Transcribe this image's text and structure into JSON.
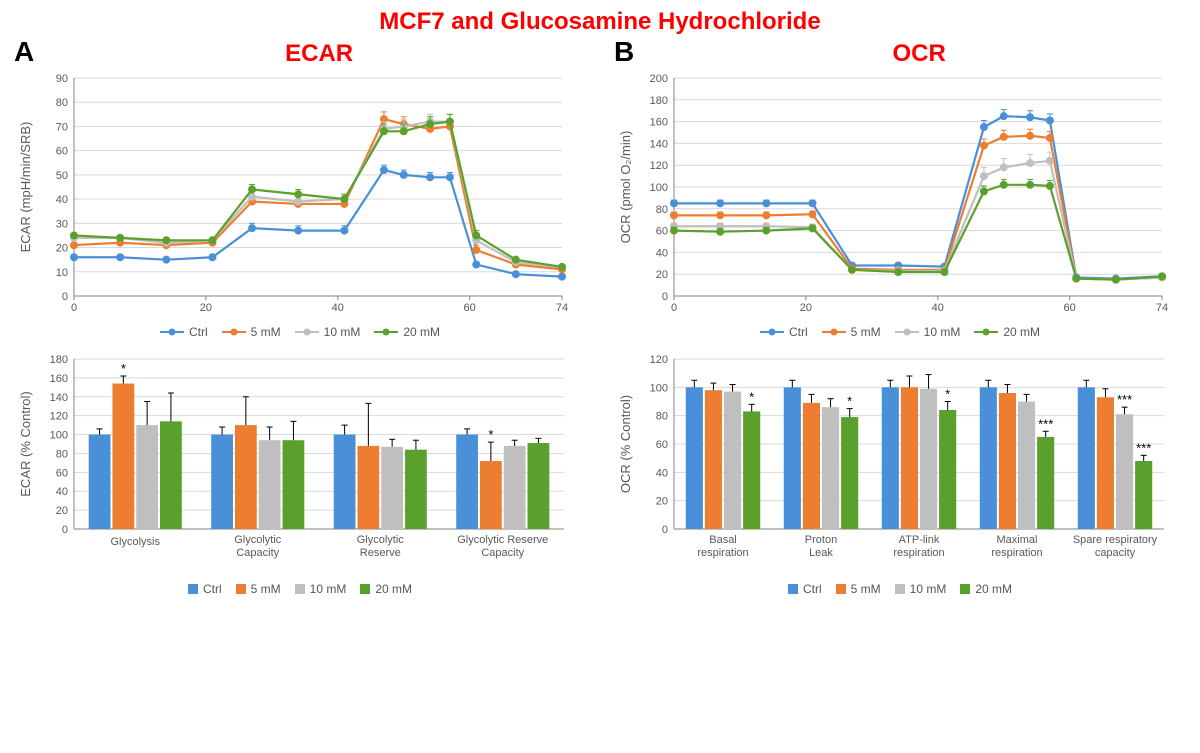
{
  "title": "MCF7 and Glucosamine Hydrochloride",
  "title_color": "#ff0000",
  "colors": {
    "ctrl": "#4a90d9",
    "c5": "#ed7d31",
    "c10": "#bfbfbf",
    "c20": "#5aa02c",
    "grid": "#d9d9d9",
    "axis": "#808080",
    "text": "#595959",
    "red": "#ff0000"
  },
  "legend_labels": {
    "ctrl": "Ctrl",
    "c5": "5 mM",
    "c10": "10 mM",
    "c20": "20 mM"
  },
  "panelA": {
    "letter": "A",
    "subtitle": "ECAR",
    "line": {
      "ylabel": "ECAR (mpH/min/SRB)",
      "x": [
        0,
        7,
        14,
        21,
        27,
        34,
        41,
        47,
        50,
        54,
        57,
        61,
        67,
        74
      ],
      "xticks": [
        0,
        20,
        40,
        60,
        74
      ],
      "ymin": 0,
      "ymax": 90,
      "ystep": 10,
      "series": {
        "ctrl": [
          16,
          16,
          15,
          16,
          28,
          27,
          27,
          52,
          50,
          49,
          49,
          13,
          9,
          8
        ],
        "c5": [
          21,
          22,
          21,
          22,
          39,
          38,
          38,
          73,
          71,
          69,
          70,
          19,
          13,
          11
        ],
        "c10": [
          24,
          24,
          22,
          23,
          41,
          39,
          40,
          69,
          70,
          72,
          72,
          23,
          14,
          12
        ],
        "c20": [
          25,
          24,
          23,
          23,
          44,
          42,
          40,
          68,
          68,
          71,
          72,
          25,
          15,
          12
        ]
      },
      "err": {
        "ctrl": [
          1,
          1,
          1,
          1,
          2,
          2,
          2,
          2,
          2,
          2,
          2,
          1,
          1,
          1
        ],
        "c5": [
          1,
          1,
          1,
          1,
          2,
          2,
          2,
          3,
          3,
          3,
          3,
          2,
          1,
          1
        ],
        "c10": [
          1,
          1,
          1,
          1,
          2,
          2,
          2,
          3,
          3,
          3,
          3,
          2,
          1,
          1
        ],
        "c20": [
          1,
          1,
          1,
          1,
          2,
          2,
          2,
          3,
          3,
          3,
          3,
          2,
          1,
          1
        ]
      }
    },
    "bars": {
      "ylabel": "ECAR (% Control)",
      "ymin": 0,
      "ymax": 180,
      "ystep": 20,
      "categories": [
        "Glycolysis",
        "Glycolytic Capacity",
        "Glycolytic Reserve",
        "Glycolytic Reserve Capacity"
      ],
      "values": {
        "ctrl": [
          100,
          100,
          100,
          100
        ],
        "c5": [
          154,
          110,
          88,
          72
        ],
        "c10": [
          110,
          94,
          87,
          88
        ],
        "c20": [
          114,
          94,
          84,
          91
        ]
      },
      "err": {
        "ctrl": [
          6,
          8,
          10,
          6
        ],
        "c5": [
          8,
          30,
          45,
          20
        ],
        "c10": [
          25,
          14,
          8,
          6
        ],
        "c20": [
          30,
          20,
          10,
          5
        ]
      },
      "sig": [
        {
          "group": 0,
          "series": "c5",
          "label": "*"
        },
        {
          "group": 3,
          "series": "c5",
          "label": "*"
        }
      ]
    }
  },
  "panelB": {
    "letter": "B",
    "subtitle": "OCR",
    "line": {
      "ylabel": "OCR (pmol O₂/min)",
      "x": [
        0,
        7,
        14,
        21,
        27,
        34,
        41,
        47,
        50,
        54,
        57,
        61,
        67,
        74
      ],
      "xticks": [
        0,
        20,
        40,
        60,
        74
      ],
      "ymin": 0,
      "ymax": 200,
      "ystep": 20,
      "series": {
        "ctrl": [
          85,
          85,
          85,
          85,
          28,
          28,
          27,
          155,
          165,
          164,
          161,
          17,
          16,
          18
        ],
        "c5": [
          74,
          74,
          74,
          75,
          25,
          24,
          24,
          138,
          146,
          147,
          145,
          16,
          15,
          17
        ],
        "c10": [
          64,
          64,
          64,
          63,
          24,
          23,
          23,
          110,
          118,
          122,
          124,
          16,
          15,
          17
        ],
        "c20": [
          60,
          59,
          60,
          62,
          24,
          22,
          22,
          96,
          102,
          102,
          101,
          16,
          15,
          18
        ]
      },
      "err": {
        "ctrl": [
          3,
          3,
          3,
          3,
          2,
          2,
          2,
          6,
          6,
          6,
          6,
          1,
          1,
          1
        ],
        "c5": [
          3,
          3,
          3,
          3,
          2,
          2,
          2,
          6,
          6,
          6,
          6,
          1,
          1,
          1
        ],
        "c10": [
          3,
          3,
          3,
          3,
          2,
          2,
          2,
          8,
          8,
          8,
          8,
          1,
          1,
          1
        ],
        "c20": [
          3,
          3,
          3,
          3,
          2,
          2,
          2,
          5,
          5,
          5,
          5,
          1,
          1,
          1
        ]
      }
    },
    "bars": {
      "ylabel": "OCR (% Control)",
      "ymin": 0,
      "ymax": 120,
      "ystep": 20,
      "categories": [
        "Basal respiration",
        "Proton Leak",
        "ATP-link respiration",
        "Maximal respiration",
        "Spare respiratory capacity"
      ],
      "values": {
        "ctrl": [
          100,
          100,
          100,
          100,
          100
        ],
        "c5": [
          98,
          89,
          100,
          96,
          93
        ],
        "c10": [
          97,
          86,
          99,
          90,
          81
        ],
        "c20": [
          83,
          79,
          84,
          65,
          48
        ]
      },
      "err": {
        "ctrl": [
          5,
          5,
          5,
          5,
          5
        ],
        "c5": [
          5,
          6,
          8,
          6,
          6
        ],
        "c10": [
          5,
          6,
          10,
          5,
          5
        ],
        "c20": [
          5,
          6,
          6,
          4,
          4
        ]
      },
      "sig": [
        {
          "group": 0,
          "series": "c20",
          "label": "*"
        },
        {
          "group": 1,
          "series": "c20",
          "label": "*"
        },
        {
          "group": 2,
          "series": "c20",
          "label": "*"
        },
        {
          "group": 3,
          "series": "c20",
          "label": "***"
        },
        {
          "group": 4,
          "series": "c10",
          "label": "***"
        },
        {
          "group": 4,
          "series": "c20",
          "label": "***"
        }
      ]
    }
  }
}
